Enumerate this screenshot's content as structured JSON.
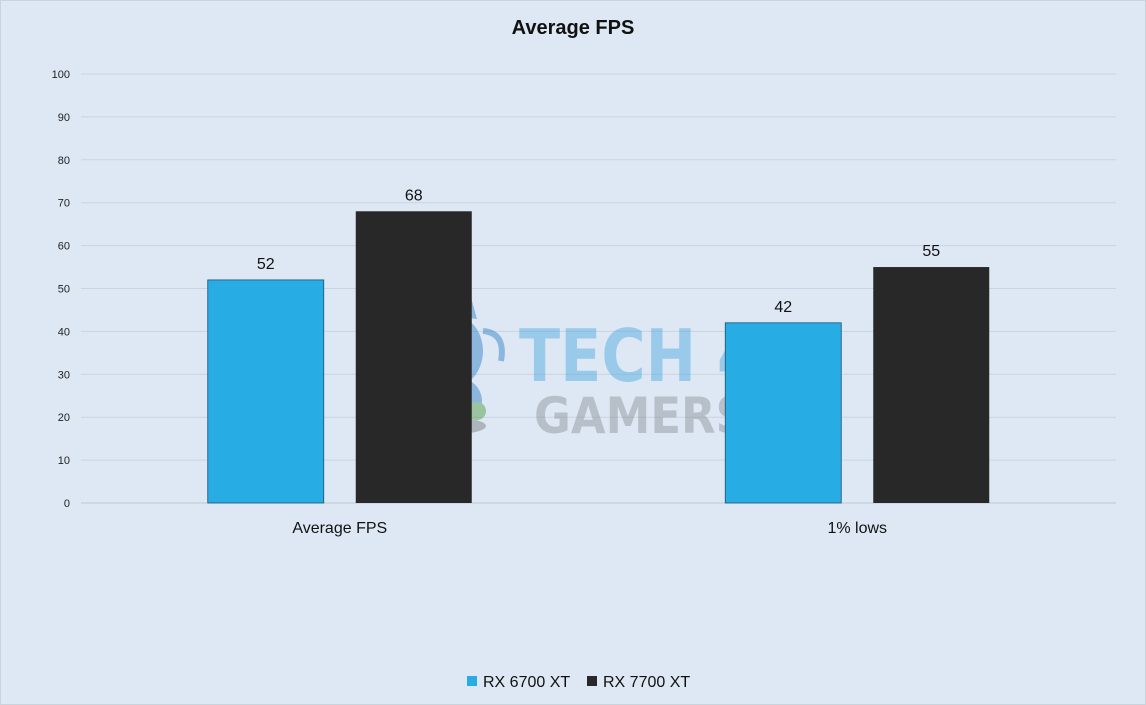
{
  "chart_data": {
    "type": "bar",
    "title": "Average FPS",
    "categories": [
      "Average FPS",
      "1% lows"
    ],
    "series": [
      {
        "name": "RX 6700 XT",
        "values": [
          52,
          42
        ],
        "color": "#27ade4"
      },
      {
        "name": "RX 7700 XT",
        "values": [
          68,
          55
        ],
        "color": "#282828"
      }
    ],
    "ylim": [
      0,
      100
    ],
    "yticks": [
      0,
      10,
      20,
      30,
      40,
      50,
      60,
      70,
      80,
      90,
      100
    ],
    "grid": true,
    "legend": "bottom",
    "xlabel": "",
    "ylabel": ""
  },
  "watermark": {
    "line1": "TECH 4",
    "line2": "GAMERS"
  },
  "colors": {
    "background": "#dde8f4",
    "grid": "#c9d4e0"
  }
}
